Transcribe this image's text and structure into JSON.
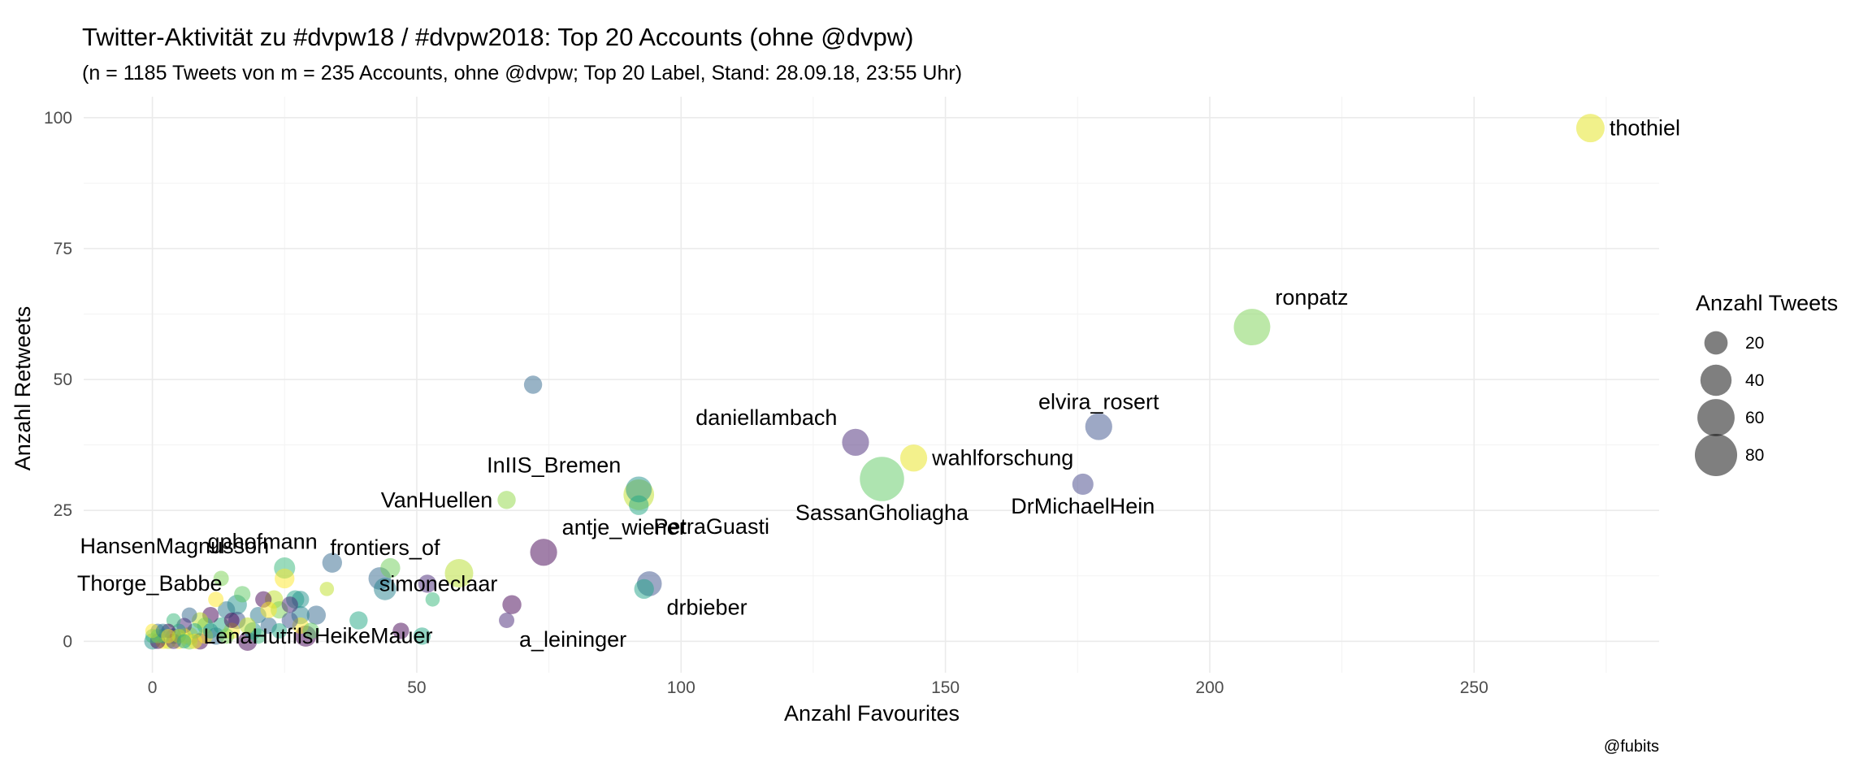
{
  "chart_data": {
    "type": "scatter",
    "title": "Twitter-Aktivität zu #dvpw18 / #dvpw2018: Top 20 Accounts (ohne @dvpw)",
    "subtitle": "(n = 1185 Tweets von m = 235 Accounts, ohne @dvpw; Top 20 Label, Stand: 28.09.18, 23:55 Uhr)",
    "xlabel": "Anzahl Favourites",
    "ylabel": "Anzahl Retweets",
    "caption": "@fubits",
    "xlim": [
      -13,
      285
    ],
    "ylim": [
      -6,
      104
    ],
    "xticks": [
      0,
      50,
      100,
      150,
      200,
      250
    ],
    "yticks": [
      0,
      25,
      50,
      75,
      100
    ],
    "grid": true,
    "size_legend": {
      "title": "Anzahl Tweets",
      "values": [
        20,
        40,
        60,
        80
      ],
      "position": "right"
    },
    "color_scale": "viridis",
    "labeled_points": [
      {
        "name": "thothiel",
        "x": 272,
        "y": 98,
        "tweets": 25,
        "color": "#e3e418"
      },
      {
        "name": "ronpatz",
        "x": 208,
        "y": 60,
        "tweets": 45,
        "color": "#7ad151"
      },
      {
        "name": "elvira_rosert",
        "x": 179,
        "y": 41,
        "tweets": 22,
        "color": "#3b528b"
      },
      {
        "name": "daniellambach",
        "x": 133,
        "y": 38,
        "tweets": 22,
        "color": "#482878"
      },
      {
        "name": "wahlforschung",
        "x": 144,
        "y": 35,
        "tweets": 22,
        "color": "#e8e419"
      },
      {
        "name": "SassanGholiagha",
        "x": 138,
        "y": 31,
        "tweets": 70,
        "color": "#5ec962"
      },
      {
        "name": "DrMichaelHein",
        "x": 176,
        "y": 30,
        "tweets": 12,
        "color": "#414487"
      },
      {
        "name": "InIIS_Bremen",
        "x": 92,
        "y": 29,
        "tweets": 20,
        "color": "#21918c"
      },
      {
        "name": "VanHuellen",
        "x": 67,
        "y": 27,
        "tweets": 8,
        "color": "#8fd744"
      },
      {
        "name": "PetraGuasti",
        "x": 92,
        "y": 26,
        "tweets": 10,
        "color": "#22a884"
      },
      {
        "name": "antje_wiener",
        "x": 74,
        "y": 17,
        "tweets": 22,
        "color": "#440154"
      },
      {
        "name": "gphofmann",
        "x": 34,
        "y": 15,
        "tweets": 10,
        "color": "#31688e"
      },
      {
        "name": "frontiers_of",
        "x": 58,
        "y": 13,
        "tweets": 25,
        "color": "#b5de2b"
      },
      {
        "name": "HansenMagnusson",
        "x": 25,
        "y": 14,
        "tweets": 12,
        "color": "#35b779"
      },
      {
        "name": "drbieber",
        "x": 94,
        "y": 11,
        "tweets": 18,
        "color": "#3b528b"
      },
      {
        "name": "simoneclaar",
        "x": 68,
        "y": 7,
        "tweets": 9,
        "color": "#440154"
      },
      {
        "name": "Thorge_Babbe",
        "x": 16,
        "y": 7,
        "tweets": 10,
        "color": "#21918c"
      },
      {
        "name": "HeikeMauer",
        "x": 28,
        "y": 5,
        "tweets": 8,
        "color": "#26828e"
      },
      {
        "name": "a_leininger",
        "x": 67,
        "y": 4,
        "tweets": 5,
        "color": "#482878"
      },
      {
        "name": "LenaHutfils",
        "x": 7,
        "y": 1,
        "tweets": 8,
        "color": "#fde725"
      }
    ],
    "other_points": [
      {
        "x": 72,
        "y": 49,
        "tweets": 8,
        "color": "#31688e"
      },
      {
        "x": 92,
        "y": 28,
        "tweets": 30,
        "color": "#bddf26"
      },
      {
        "x": 93,
        "y": 10,
        "tweets": 10,
        "color": "#1fa187"
      },
      {
        "x": 43,
        "y": 12,
        "tweets": 14,
        "color": "#31688e"
      },
      {
        "x": 44,
        "y": 10,
        "tweets": 14,
        "color": "#26828e"
      },
      {
        "x": 45,
        "y": 14,
        "tweets": 10,
        "color": "#6ece58"
      },
      {
        "x": 52,
        "y": 11,
        "tweets": 8,
        "color": "#482878"
      },
      {
        "x": 53,
        "y": 8,
        "tweets": 4,
        "color": "#35b779"
      },
      {
        "x": 51,
        "y": 1,
        "tweets": 7,
        "color": "#22a884"
      },
      {
        "x": 47,
        "y": 2,
        "tweets": 6,
        "color": "#440154"
      },
      {
        "x": 39,
        "y": 4,
        "tweets": 8,
        "color": "#22a884"
      },
      {
        "x": 33,
        "y": 10,
        "tweets": 4,
        "color": "#bddf26"
      },
      {
        "x": 31,
        "y": 5,
        "tweets": 9,
        "color": "#31688e"
      },
      {
        "x": 29,
        "y": 1,
        "tweets": 12,
        "color": "#440154"
      },
      {
        "x": 28,
        "y": 3,
        "tweets": 6,
        "color": "#fde725"
      },
      {
        "x": 27,
        "y": 8,
        "tweets": 8,
        "color": "#20a386"
      },
      {
        "x": 26,
        "y": 7,
        "tweets": 6,
        "color": "#482878"
      },
      {
        "x": 25,
        "y": 12,
        "tweets": 10,
        "color": "#fde725"
      },
      {
        "x": 24,
        "y": 6,
        "tweets": 7,
        "color": "#7ad151"
      },
      {
        "x": 23,
        "y": 8,
        "tweets": 8,
        "color": "#bddf26"
      },
      {
        "x": 22,
        "y": 3,
        "tweets": 6,
        "color": "#31688e"
      },
      {
        "x": 21,
        "y": 8,
        "tweets": 6,
        "color": "#440154"
      },
      {
        "x": 20,
        "y": 5,
        "tweets": 6,
        "color": "#2a788e"
      },
      {
        "x": 19,
        "y": 2,
        "tweets": 7,
        "color": "#21918c"
      },
      {
        "x": 18,
        "y": 0,
        "tweets": 9,
        "color": "#440154"
      },
      {
        "x": 17,
        "y": 9,
        "tweets": 6,
        "color": "#5ec962"
      },
      {
        "x": 16,
        "y": 4,
        "tweets": 7,
        "color": "#3b528b"
      },
      {
        "x": 15,
        "y": 2,
        "tweets": 6,
        "color": "#fde725"
      },
      {
        "x": 14,
        "y": 6,
        "tweets": 7,
        "color": "#2a788e"
      },
      {
        "x": 13,
        "y": 12,
        "tweets": 5,
        "color": "#7ad151"
      },
      {
        "x": 13,
        "y": 3,
        "tweets": 6,
        "color": "#22a884"
      },
      {
        "x": 12,
        "y": 8,
        "tweets": 5,
        "color": "#fde725"
      },
      {
        "x": 12,
        "y": 1,
        "tweets": 7,
        "color": "#31688e"
      },
      {
        "x": 11,
        "y": 5,
        "tweets": 6,
        "color": "#440154"
      },
      {
        "x": 10,
        "y": 3,
        "tweets": 6,
        "color": "#35b779"
      },
      {
        "x": 10,
        "y": 1,
        "tweets": 5,
        "color": "#fde725"
      },
      {
        "x": 9,
        "y": 4,
        "tweets": 6,
        "color": "#bddf26"
      },
      {
        "x": 9,
        "y": 0,
        "tweets": 6,
        "color": "#440154"
      },
      {
        "x": 8,
        "y": 2,
        "tweets": 5,
        "color": "#22a884"
      },
      {
        "x": 7,
        "y": 5,
        "tweets": 5,
        "color": "#31688e"
      },
      {
        "x": 7,
        "y": 0,
        "tweets": 6,
        "color": "#7ad151"
      },
      {
        "x": 6,
        "y": 3,
        "tweets": 5,
        "color": "#482878"
      },
      {
        "x": 6,
        "y": 1,
        "tweets": 5,
        "color": "#fde725"
      },
      {
        "x": 5,
        "y": 2,
        "tweets": 4,
        "color": "#21918c"
      },
      {
        "x": 5,
        "y": 0,
        "tweets": 5,
        "color": "#fde725"
      },
      {
        "x": 4,
        "y": 4,
        "tweets": 4,
        "color": "#35b779"
      },
      {
        "x": 4,
        "y": 1,
        "tweets": 5,
        "color": "#31688e"
      },
      {
        "x": 3,
        "y": 2,
        "tweets": 4,
        "color": "#440154"
      },
      {
        "x": 3,
        "y": 0,
        "tweets": 5,
        "color": "#bddf26"
      },
      {
        "x": 2,
        "y": 1,
        "tweets": 4,
        "color": "#22a884"
      },
      {
        "x": 2,
        "y": 0,
        "tweets": 5,
        "color": "#fde725"
      },
      {
        "x": 1,
        "y": 2,
        "tweets": 4,
        "color": "#31688e"
      },
      {
        "x": 1,
        "y": 0,
        "tweets": 5,
        "color": "#440154"
      },
      {
        "x": 0,
        "y": 1,
        "tweets": 4,
        "color": "#35b779"
      },
      {
        "x": 0,
        "y": 0,
        "tweets": 6,
        "color": "#21918c"
      },
      {
        "x": 0,
        "y": 2,
        "tweets": 4,
        "color": "#fde725"
      },
      {
        "x": 1,
        "y": 1,
        "tweets": 4,
        "color": "#7ad151"
      },
      {
        "x": 2,
        "y": 2,
        "tweets": 4,
        "color": "#2a788e"
      },
      {
        "x": 3,
        "y": 1,
        "tweets": 4,
        "color": "#fde725"
      },
      {
        "x": 4,
        "y": 0,
        "tweets": 5,
        "color": "#482878"
      },
      {
        "x": 5,
        "y": 1,
        "tweets": 4,
        "color": "#bddf26"
      },
      {
        "x": 6,
        "y": 0,
        "tweets": 4,
        "color": "#22a884"
      },
      {
        "x": 8,
        "y": 0,
        "tweets": 5,
        "color": "#fde725"
      },
      {
        "x": 11,
        "y": 2,
        "tweets": 5,
        "color": "#21918c"
      },
      {
        "x": 14,
        "y": 1,
        "tweets": 5,
        "color": "#7ad151"
      },
      {
        "x": 15,
        "y": 4,
        "tweets": 5,
        "color": "#440154"
      },
      {
        "x": 18,
        "y": 3,
        "tweets": 6,
        "color": "#bddf26"
      },
      {
        "x": 20,
        "y": 1,
        "tweets": 5,
        "color": "#35b779"
      },
      {
        "x": 22,
        "y": 6,
        "tweets": 6,
        "color": "#fde725"
      },
      {
        "x": 24,
        "y": 2,
        "tweets": 5,
        "color": "#22a884"
      },
      {
        "x": 26,
        "y": 4,
        "tweets": 6,
        "color": "#3b528b"
      },
      {
        "x": 28,
        "y": 8,
        "tweets": 7,
        "color": "#21918c"
      },
      {
        "x": 30,
        "y": 2,
        "tweets": 6,
        "color": "#5ec962"
      }
    ]
  },
  "annotations": {
    "label_positions": {
      "thothiel": "right",
      "ronpatz": "upper-right",
      "elvira_rosert": "above",
      "daniellambach": "upper-left",
      "wahlforschung": "right",
      "SassanGholiagha": "below",
      "DrMichaelHein": "below",
      "InIIS_Bremen": "upper-left",
      "VanHuellen": "left",
      "PetraGuasti": "lower-right",
      "antje_wiener": "upper-right",
      "gphofmann": "upper-left",
      "frontiers_of": "upper-left",
      "HansenMagnusson": "upper-left",
      "drbieber": "lower-right",
      "simoneclaar": "upper-left",
      "Thorge_Babbe": "upper-left",
      "HeikeMauer": "lower-right",
      "a_leininger": "lower-right",
      "LenaHutfils": "right"
    }
  }
}
